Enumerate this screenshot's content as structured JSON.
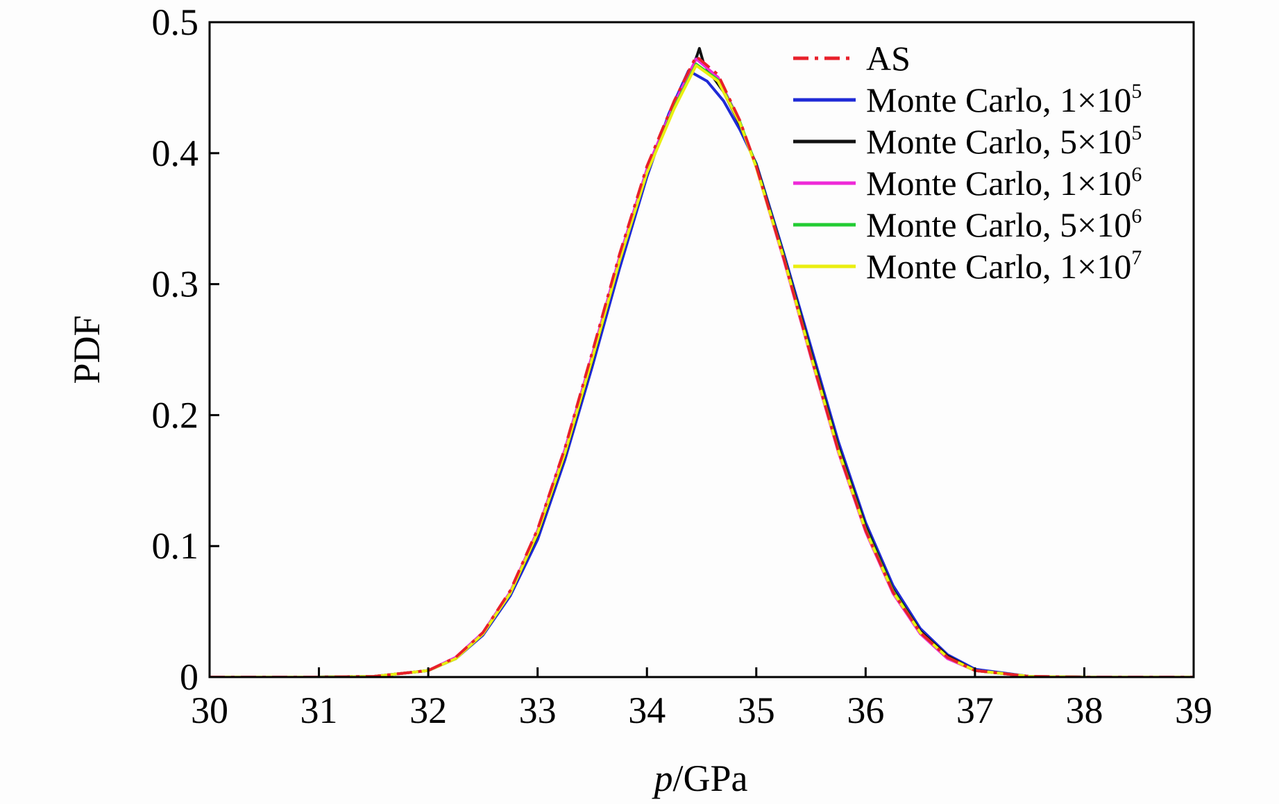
{
  "chart_data": {
    "type": "line",
    "title": "",
    "xlabel_italic": "p",
    "xlabel_rest": "/GPa",
    "ylabel": "PDF",
    "xlim": [
      30,
      39
    ],
    "ylim": [
      0,
      0.5
    ],
    "xticks": [
      30,
      31,
      32,
      33,
      34,
      35,
      36,
      37,
      38,
      39
    ],
    "yticks": [
      {
        "value": 0,
        "label": "0"
      },
      {
        "value": 0.1,
        "label": "0.1"
      },
      {
        "value": 0.2,
        "label": "0.2"
      },
      {
        "value": 0.3,
        "label": "0.3"
      },
      {
        "value": 0.4,
        "label": "0.4"
      },
      {
        "value": 0.5,
        "label": "0.5"
      }
    ],
    "grid": false,
    "legend_position": "top-right",
    "series": [
      {
        "name": "AS",
        "legend_main": "AS",
        "legend_sup": "",
        "color": "#e8202a",
        "dash": "dashdot",
        "x": [
          30,
          31,
          31.5,
          32,
          32.25,
          32.5,
          32.75,
          33,
          33.25,
          33.5,
          33.75,
          34,
          34.25,
          34.45,
          34.65,
          34.85,
          35,
          35.25,
          35.5,
          35.75,
          36,
          36.25,
          36.5,
          36.75,
          37,
          37.5,
          38,
          39
        ],
        "y": [
          0,
          0,
          0.0005,
          0.005,
          0.015,
          0.034,
          0.066,
          0.113,
          0.175,
          0.248,
          0.323,
          0.39,
          0.44,
          0.474,
          0.46,
          0.425,
          0.39,
          0.32,
          0.245,
          0.173,
          0.112,
          0.065,
          0.034,
          0.015,
          0.005,
          0.0005,
          0,
          0
        ]
      },
      {
        "name": "Monte Carlo, 1×10^5",
        "legend_main": "Monte Carlo, 1×10",
        "legend_sup": "5",
        "color": "#1f2ad6",
        "dash": "solid",
        "x": [
          30,
          31,
          31.5,
          32,
          32.25,
          32.5,
          32.75,
          33,
          33.25,
          33.5,
          33.75,
          34,
          34.2,
          34.38,
          34.55,
          34.7,
          34.85,
          35,
          35.25,
          35.5,
          35.75,
          36,
          36.25,
          36.5,
          36.75,
          37,
          37.5,
          38,
          39
        ],
        "y": [
          0,
          0,
          0.0005,
          0.005,
          0.014,
          0.032,
          0.062,
          0.105,
          0.166,
          0.237,
          0.312,
          0.382,
          0.43,
          0.463,
          0.455,
          0.44,
          0.418,
          0.392,
          0.324,
          0.252,
          0.18,
          0.118,
          0.07,
          0.037,
          0.017,
          0.006,
          0.0005,
          0,
          0
        ]
      },
      {
        "name": "Monte Carlo, 5×10^5",
        "legend_main": "Monte Carlo, 5×10",
        "legend_sup": "5",
        "color": "#111111",
        "dash": "solid",
        "x": [
          30,
          31,
          31.5,
          32,
          32.25,
          32.5,
          32.75,
          33,
          33.25,
          33.5,
          33.75,
          34,
          34.25,
          34.42,
          34.46,
          34.48,
          34.52,
          34.7,
          34.85,
          35,
          35.25,
          35.5,
          35.75,
          36,
          36.25,
          36.5,
          36.75,
          37,
          37.5,
          38,
          39
        ],
        "y": [
          0,
          0,
          0.0005,
          0.005,
          0.014,
          0.033,
          0.064,
          0.109,
          0.17,
          0.242,
          0.318,
          0.385,
          0.438,
          0.466,
          0.475,
          0.48,
          0.468,
          0.447,
          0.422,
          0.391,
          0.322,
          0.248,
          0.176,
          0.115,
          0.067,
          0.035,
          0.016,
          0.005,
          0.0005,
          0,
          0
        ]
      },
      {
        "name": "Monte Carlo, 1×10^6",
        "legend_main": "Monte Carlo, 1×10",
        "legend_sup": "6",
        "color": "#ee2ad8",
        "dash": "solid",
        "x": [
          30,
          31,
          31.5,
          32,
          32.25,
          32.5,
          32.75,
          33,
          33.25,
          33.5,
          33.75,
          34,
          34.25,
          34.45,
          34.65,
          34.85,
          35,
          35.25,
          35.5,
          35.75,
          36,
          36.25,
          36.5,
          36.75,
          37,
          37.5,
          38,
          39
        ],
        "y": [
          0,
          0,
          0.0005,
          0.005,
          0.015,
          0.034,
          0.065,
          0.112,
          0.174,
          0.246,
          0.321,
          0.388,
          0.438,
          0.472,
          0.458,
          0.424,
          0.389,
          0.319,
          0.244,
          0.172,
          0.111,
          0.064,
          0.033,
          0.014,
          0.005,
          0.0005,
          0,
          0
        ]
      },
      {
        "name": "Monte Carlo, 5×10^6",
        "legend_main": "Monte Carlo, 5×10",
        "legend_sup": "6",
        "color": "#22cc33",
        "dash": "solid",
        "x": [
          30,
          31,
          31.5,
          32,
          32.25,
          32.5,
          32.75,
          33,
          33.25,
          33.5,
          33.75,
          34,
          34.25,
          34.45,
          34.65,
          34.85,
          35,
          35.25,
          35.5,
          35.75,
          36,
          36.25,
          36.5,
          36.75,
          37,
          37.5,
          38,
          39
        ],
        "y": [
          0,
          0,
          0.0005,
          0.005,
          0.014,
          0.033,
          0.064,
          0.11,
          0.171,
          0.243,
          0.318,
          0.385,
          0.435,
          0.468,
          0.456,
          0.424,
          0.39,
          0.321,
          0.246,
          0.174,
          0.113,
          0.066,
          0.034,
          0.015,
          0.005,
          0.0005,
          0,
          0
        ]
      },
      {
        "name": "Monte Carlo, 1×10^7",
        "legend_main": "Monte Carlo, 1×10",
        "legend_sup": "7",
        "color": "#eaee10",
        "dash": "solid",
        "x": [
          30,
          31,
          31.5,
          32,
          32.25,
          32.5,
          32.75,
          33,
          33.25,
          33.5,
          33.75,
          34,
          34.25,
          34.45,
          34.65,
          34.85,
          35,
          35.25,
          35.5,
          35.75,
          36,
          36.25,
          36.5,
          36.75,
          37,
          37.5,
          38,
          39
        ],
        "y": [
          0,
          0,
          0.0005,
          0.005,
          0.014,
          0.033,
          0.064,
          0.11,
          0.171,
          0.243,
          0.318,
          0.385,
          0.434,
          0.467,
          0.455,
          0.423,
          0.389,
          0.32,
          0.245,
          0.173,
          0.112,
          0.065,
          0.034,
          0.015,
          0.005,
          0.0005,
          0,
          0
        ]
      }
    ]
  }
}
